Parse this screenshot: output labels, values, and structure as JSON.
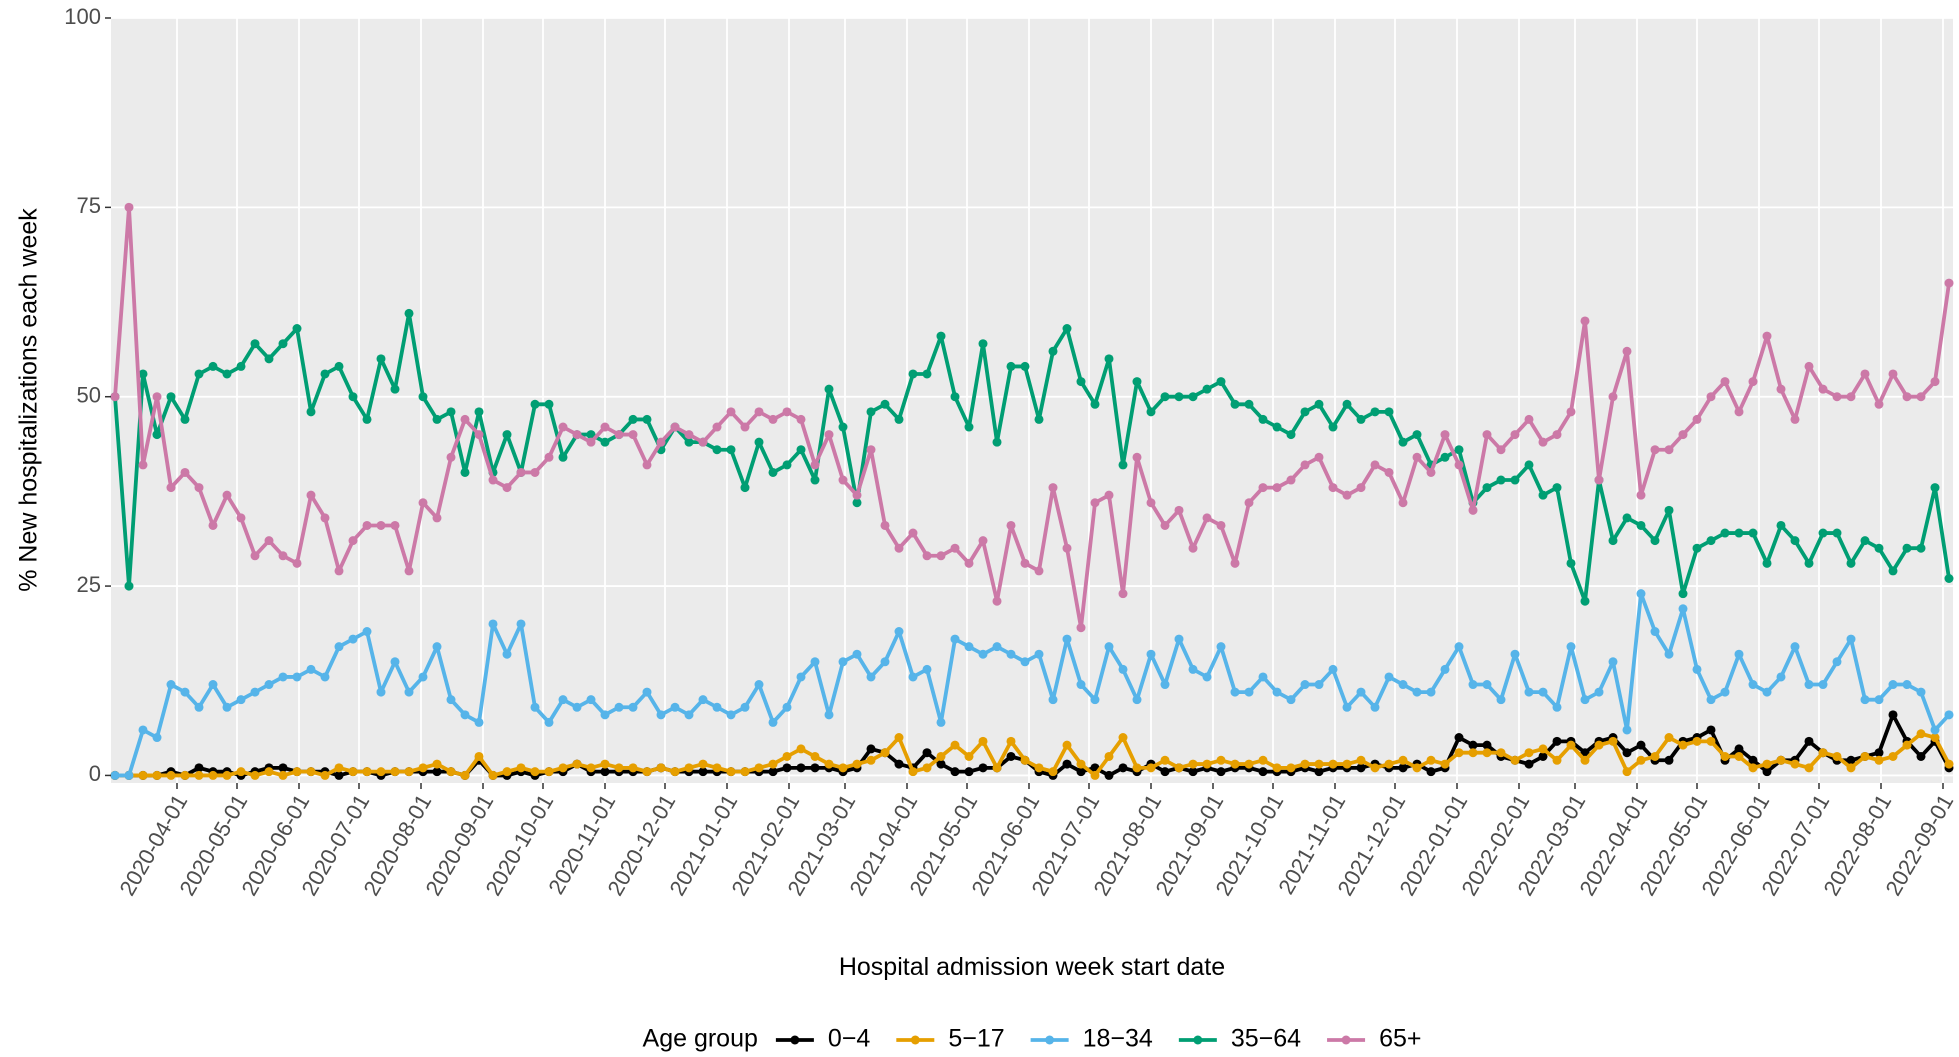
{
  "chart_data": {
    "type": "line",
    "x_label": "Hospital admission week start date",
    "y_label": "% New hospitalizations each week",
    "legend_title": "Age group",
    "legend": "bottom",
    "grid": true,
    "xlim": [
      "2020-02-28",
      "2022-09-06"
    ],
    "ylim": [
      -1,
      100
    ],
    "yticks": [
      0,
      25,
      50,
      75,
      100
    ],
    "xticks": [
      "2020-04-01",
      "2020-05-01",
      "2020-06-01",
      "2020-07-01",
      "2020-08-01",
      "2020-09-01",
      "2020-10-01",
      "2020-11-01",
      "2020-12-01",
      "2021-01-01",
      "2021-02-01",
      "2021-03-01",
      "2021-04-01",
      "2021-05-01",
      "2021-06-01",
      "2021-07-01",
      "2021-08-01",
      "2021-09-01",
      "2021-10-01",
      "2021-11-01",
      "2021-12-01",
      "2022-01-01",
      "2022-02-01",
      "2022-03-01",
      "2022-04-01",
      "2022-05-01",
      "2022-06-01",
      "2022-07-01",
      "2022-08-01",
      "2022-09-01"
    ],
    "x": [
      "2020-03-01",
      "2020-03-08",
      "2020-03-15",
      "2020-03-22",
      "2020-03-29",
      "2020-04-05",
      "2020-04-12",
      "2020-04-19",
      "2020-04-26",
      "2020-05-03",
      "2020-05-10",
      "2020-05-17",
      "2020-05-24",
      "2020-05-31",
      "2020-06-07",
      "2020-06-14",
      "2020-06-21",
      "2020-06-28",
      "2020-07-05",
      "2020-07-12",
      "2020-07-19",
      "2020-07-26",
      "2020-08-02",
      "2020-08-09",
      "2020-08-16",
      "2020-08-23",
      "2020-08-30",
      "2020-09-06",
      "2020-09-13",
      "2020-09-20",
      "2020-09-27",
      "2020-10-04",
      "2020-10-11",
      "2020-10-18",
      "2020-10-25",
      "2020-11-01",
      "2020-11-08",
      "2020-11-15",
      "2020-11-22",
      "2020-11-29",
      "2020-12-06",
      "2020-12-13",
      "2020-12-20",
      "2020-12-27",
      "2021-01-03",
      "2021-01-10",
      "2021-01-17",
      "2021-01-24",
      "2021-01-31",
      "2021-02-07",
      "2021-02-14",
      "2021-02-21",
      "2021-02-28",
      "2021-03-07",
      "2021-03-14",
      "2021-03-21",
      "2021-03-28",
      "2021-04-04",
      "2021-04-11",
      "2021-04-18",
      "2021-04-25",
      "2021-05-02",
      "2021-05-09",
      "2021-05-16",
      "2021-05-23",
      "2021-05-30",
      "2021-06-06",
      "2021-06-13",
      "2021-06-20",
      "2021-06-27",
      "2021-07-04",
      "2021-07-11",
      "2021-07-18",
      "2021-07-25",
      "2021-08-01",
      "2021-08-08",
      "2021-08-15",
      "2021-08-22",
      "2021-08-29",
      "2021-09-05",
      "2021-09-12",
      "2021-09-19",
      "2021-09-26",
      "2021-10-03",
      "2021-10-10",
      "2021-10-17",
      "2021-10-24",
      "2021-10-31",
      "2021-11-07",
      "2021-11-14",
      "2021-11-21",
      "2021-11-28",
      "2021-12-05",
      "2021-12-12",
      "2021-12-19",
      "2021-12-26",
      "2022-01-02",
      "2022-01-09",
      "2022-01-16",
      "2022-01-23",
      "2022-01-30",
      "2022-02-06",
      "2022-02-13",
      "2022-02-20",
      "2022-02-27",
      "2022-03-06",
      "2022-03-13",
      "2022-03-20",
      "2022-03-27",
      "2022-04-03",
      "2022-04-10",
      "2022-04-17",
      "2022-04-24",
      "2022-05-01",
      "2022-05-08",
      "2022-05-15",
      "2022-05-22",
      "2022-05-29",
      "2022-06-05",
      "2022-06-12",
      "2022-06-19",
      "2022-06-26",
      "2022-07-03",
      "2022-07-10",
      "2022-07-17",
      "2022-07-24",
      "2022-07-31",
      "2022-08-07",
      "2022-08-14",
      "2022-08-21",
      "2022-08-28",
      "2022-09-04"
    ],
    "series": [
      {
        "name": "0−4",
        "color": "#000000",
        "values": [
          0,
          0,
          0,
          0,
          0.5,
          0,
          1,
          0.5,
          0.5,
          0,
          0.5,
          1,
          1,
          0.5,
          0.5,
          0.5,
          0,
          0.5,
          0.5,
          0,
          0.5,
          0.5,
          0.5,
          0.5,
          0.5,
          0,
          2,
          0,
          0,
          0.5,
          0,
          0.5,
          0.5,
          1.5,
          0.5,
          0.5,
          0.5,
          0.5,
          0.5,
          1,
          0.5,
          0.5,
          0.5,
          0.5,
          0.5,
          0.5,
          0.5,
          0.5,
          1,
          1,
          1,
          1,
          0.5,
          1,
          3.5,
          3,
          1.5,
          1,
          3,
          1.5,
          0.5,
          0.5,
          1,
          1,
          2.5,
          2,
          0.5,
          0,
          1.5,
          0.5,
          1,
          0,
          1,
          0.5,
          1.5,
          0.5,
          1,
          0.5,
          1,
          0.5,
          1,
          1,
          0.5,
          0.5,
          0.5,
          1,
          0.5,
          1,
          1,
          1,
          1.5,
          1,
          1,
          1.5,
          0.5,
          1,
          5,
          4,
          4,
          2.5,
          2,
          1.5,
          2.5,
          4.5,
          4.5,
          3,
          4.5,
          5,
          3,
          4,
          2,
          2,
          4.5,
          5,
          6,
          2,
          3.5,
          2,
          0.5,
          2,
          2,
          4.5,
          3,
          2,
          2,
          2.5,
          3,
          8,
          4.5,
          2.5,
          4.5,
          1
        ]
      },
      {
        "name": "5−17",
        "color": "#E69F00",
        "values": [
          0,
          0,
          0,
          0,
          0,
          0,
          0,
          0,
          0,
          0.5,
          0,
          0.5,
          0,
          0.5,
          0.5,
          0,
          1,
          0.5,
          0.5,
          0.5,
          0.5,
          0.5,
          1,
          1.5,
          0.5,
          0,
          2.5,
          0,
          0.5,
          1,
          0.5,
          0.5,
          1,
          1.5,
          1,
          1.5,
          1,
          1,
          0.5,
          1,
          0.5,
          1,
          1.5,
          1,
          0.5,
          0.5,
          1,
          1.5,
          2.5,
          3.5,
          2.5,
          1.5,
          1,
          1.5,
          2,
          3,
          5,
          0.5,
          1,
          2.5,
          4,
          2.5,
          4.5,
          1,
          4.5,
          2,
          1,
          0.5,
          4,
          1.5,
          0,
          2.5,
          5,
          1,
          1,
          2,
          1,
          1.5,
          1.5,
          2,
          1.5,
          1.5,
          2,
          1,
          1,
          1.5,
          1.5,
          1.5,
          1.5,
          2,
          1,
          1.5,
          2,
          1,
          2,
          1.5,
          3,
          3,
          3,
          3,
          2,
          3,
          3.5,
          2,
          4,
          2,
          4,
          4.5,
          0.5,
          2,
          2.5,
          5,
          4,
          4.5,
          4.5,
          2.5,
          2.5,
          1,
          1.5,
          2,
          1.5,
          1,
          3,
          2.5,
          1,
          2.5,
          2,
          2.5,
          4,
          5.5,
          5,
          1.5
        ]
      },
      {
        "name": "18−34",
        "color": "#56B4E9",
        "values": [
          0,
          0,
          6,
          5,
          12,
          11,
          9,
          12,
          9,
          10,
          11,
          12,
          13,
          13,
          14,
          13,
          17,
          18,
          19,
          11,
          15,
          11,
          13,
          17,
          10,
          8,
          7,
          20,
          16,
          20,
          9,
          7,
          10,
          9,
          10,
          8,
          9,
          9,
          11,
          8,
          9,
          8,
          10,
          9,
          8,
          9,
          12,
          7,
          9,
          13,
          15,
          8,
          15,
          16,
          13,
          15,
          19,
          13,
          14,
          7,
          18,
          17,
          16,
          17,
          16,
          15,
          16,
          10,
          18,
          12,
          10,
          17,
          14,
          10,
          16,
          12,
          18,
          14,
          13,
          17,
          11,
          11,
          13,
          11,
          10,
          12,
          12,
          14,
          9,
          11,
          9,
          13,
          12,
          11,
          11,
          14,
          17,
          12,
          12,
          10,
          16,
          11,
          11,
          9,
          17,
          10,
          11,
          15,
          6,
          24,
          19,
          16,
          22,
          14,
          10,
          11,
          16,
          12,
          11,
          13,
          17,
          12,
          12,
          15,
          18,
          10,
          10,
          12,
          12,
          11,
          6,
          8
        ]
      },
      {
        "name": "35−64",
        "color": "#009E73",
        "values": [
          50,
          25,
          53,
          45,
          50,
          47,
          53,
          54,
          53,
          54,
          57,
          55,
          57,
          59,
          48,
          53,
          54,
          50,
          47,
          55,
          51,
          61,
          50,
          47,
          48,
          40,
          48,
          40,
          45,
          40,
          49,
          49,
          42,
          45,
          45,
          44,
          45,
          47,
          47,
          43,
          46,
          44,
          44,
          43,
          43,
          38,
          44,
          40,
          41,
          43,
          39,
          51,
          46,
          36,
          48,
          49,
          47,
          53,
          53,
          58,
          50,
          46,
          57,
          44,
          54,
          54,
          47,
          56,
          59,
          52,
          49,
          55,
          41,
          52,
          48,
          50,
          50,
          50,
          51,
          52,
          49,
          49,
          47,
          46,
          45,
          48,
          49,
          46,
          49,
          47,
          48,
          48,
          44,
          45,
          41,
          42,
          43,
          36,
          38,
          39,
          39,
          41,
          37,
          38,
          28,
          23,
          39,
          31,
          34,
          33,
          31,
          35,
          24,
          30,
          31,
          32,
          32,
          32,
          28,
          33,
          31,
          28,
          32,
          32,
          28,
          31,
          30,
          27,
          30,
          30,
          38,
          26
        ]
      },
      {
        "name": "65+",
        "color": "#CC79A7",
        "values": [
          50,
          75,
          41,
          50,
          38,
          40,
          38,
          33,
          37,
          34,
          29,
          31,
          29,
          28,
          37,
          34,
          27,
          31,
          33,
          33,
          33,
          27,
          36,
          34,
          42,
          47,
          45,
          39,
          38,
          40,
          40,
          42,
          46,
          45,
          44,
          46,
          45,
          45,
          41,
          44,
          46,
          45,
          44,
          46,
          48,
          46,
          48,
          47,
          48,
          47,
          41,
          45,
          39,
          37,
          43,
          33,
          30,
          32,
          29,
          29,
          30,
          28,
          31,
          23,
          33,
          28,
          27,
          38,
          30,
          19.5,
          36,
          37,
          24,
          42,
          36,
          33,
          35,
          30,
          34,
          33,
          28,
          36,
          38,
          38,
          39,
          41,
          42,
          38,
          37,
          38,
          41,
          40,
          36,
          42,
          40,
          45,
          41,
          35,
          45,
          43,
          45,
          47,
          44,
          45,
          48,
          60,
          39,
          50,
          56,
          37,
          43,
          43,
          45,
          47,
          50,
          52,
          48,
          52,
          58,
          51,
          47,
          54,
          51,
          50,
          50,
          53,
          49,
          53,
          50,
          50,
          52,
          65
        ]
      }
    ]
  }
}
